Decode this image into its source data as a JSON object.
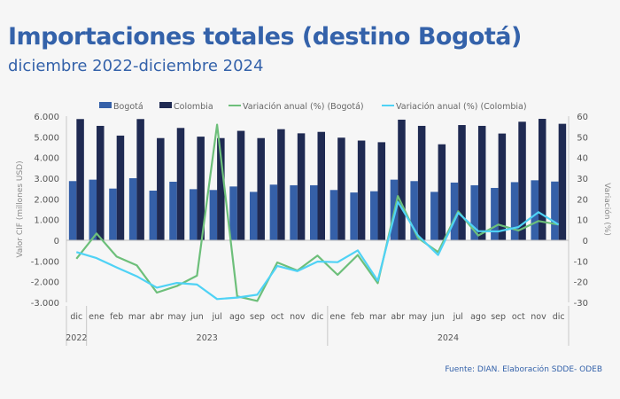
{
  "title": "Importaciones totales (destino Bogotá)",
  "subtitle": "diciembre 2022-diciembre 2024",
  "source": "Fuente: DIAN. Elaboración SDDE- ODEB",
  "colors": {
    "bogota": "#3560a8",
    "colombia": "#1f2a52",
    "var_bogota": "#6dbf7a",
    "var_colombia": "#4fd2f5",
    "title": "#3462aa"
  },
  "chart_data": {
    "type": "bar+line",
    "categories": [
      "dic",
      "ene",
      "feb",
      "mar",
      "abr",
      "may",
      "jun",
      "jul",
      "ago",
      "sep",
      "oct",
      "nov",
      "dic",
      "ene",
      "feb",
      "mar",
      "abr",
      "may",
      "jun",
      "jul",
      "ago",
      "sep",
      "oct",
      "nov",
      "dic"
    ],
    "year_groups": [
      {
        "label": "2022",
        "count": 1
      },
      {
        "label": "2023",
        "count": 12
      },
      {
        "label": "2024",
        "count": 12
      }
    ],
    "ylabel": "Valor CIF (millones USD)",
    "ylabel_right": "Variación (%)",
    "ylim": [
      -3000,
      6000
    ],
    "yticks": [
      "-3.000",
      "-2.000",
      "-1.000",
      "0",
      "1.000",
      "2.000",
      "3.000",
      "4.000",
      "5.000",
      "6.000"
    ],
    "ylim_right": [
      -30,
      60
    ],
    "yticks_right": [
      "-30",
      "-20",
      "-10",
      "0",
      "10",
      "20",
      "30",
      "40",
      "50",
      "60"
    ],
    "legend_position": "top",
    "grid": false,
    "series": [
      {
        "name": "Bogotá",
        "kind": "bar",
        "axis": "left",
        "values": [
          2860,
          2930,
          2500,
          3000,
          2400,
          2830,
          2470,
          2430,
          2600,
          2340,
          2690,
          2660,
          2660,
          2430,
          2310,
          2370,
          2930,
          2860,
          2340,
          2790,
          2660,
          2530,
          2810,
          2900,
          2840
        ]
      },
      {
        "name": "Colombia",
        "kind": "bar",
        "axis": "left",
        "values": [
          5860,
          5530,
          5060,
          5860,
          4940,
          5430,
          5010,
          4940,
          5290,
          4940,
          5370,
          5170,
          5240,
          4960,
          4820,
          4740,
          5830,
          5530,
          4640,
          5570,
          5530,
          5160,
          5730,
          5870,
          5630
        ]
      },
      {
        "name": "Variación anual (%) (Bogotá)",
        "kind": "line",
        "axis": "right",
        "values": [
          -8.9,
          3.3,
          -7.9,
          -12.1,
          -25.3,
          -22.1,
          -17.1,
          55.9,
          -27.1,
          -29.3,
          -10.7,
          -14.6,
          -7.4,
          -16.7,
          -7.1,
          -20.7,
          21.4,
          1.1,
          -5.7,
          14.0,
          2.3,
          7.6,
          4.7,
          9.3,
          7.6
        ]
      },
      {
        "name": "Variación anual (%) (Colombia)",
        "kind": "line",
        "axis": "right",
        "values": [
          -5.7,
          -8.6,
          -13.1,
          -17.4,
          -22.9,
          -20.6,
          -21.4,
          -28.4,
          -27.7,
          -26.3,
          -12.4,
          -14.9,
          -10.3,
          -10.6,
          -4.9,
          -19.6,
          18.6,
          2.3,
          -7.1,
          13.3,
          4.4,
          4.3,
          6.4,
          13.6,
          7.6
        ]
      }
    ]
  }
}
